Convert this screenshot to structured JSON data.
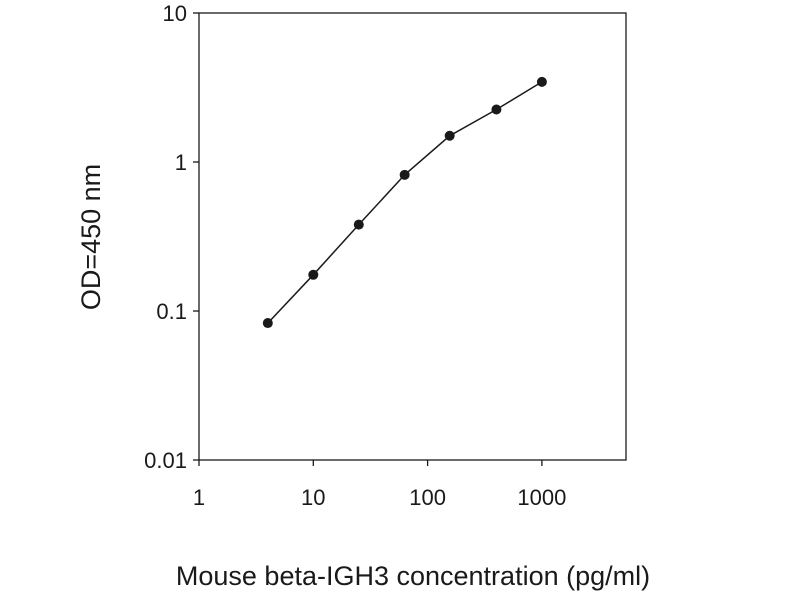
{
  "chart_data": {
    "type": "line",
    "title": "",
    "xlabel": "Mouse beta-IGH3 concentration (pg/ml)",
    "ylabel": "OD=450 nm",
    "x_scale": "log",
    "y_scale": "log",
    "xlim": [
      1,
      5000
    ],
    "ylim": [
      0.01,
      10
    ],
    "x_ticks": [
      1,
      10,
      100,
      1000
    ],
    "x_tick_labels": [
      "1",
      "10",
      "100",
      "1000"
    ],
    "y_ticks": [
      0.01,
      0.1,
      1,
      10
    ],
    "y_tick_labels": [
      "0.01",
      "0.1",
      "1",
      "10"
    ],
    "grid": false,
    "legend": "none",
    "series": [
      {
        "x": [
          4,
          10,
          25,
          63,
          156,
          400,
          1000
        ],
        "y": [
          0.083,
          0.175,
          0.38,
          0.82,
          1.5,
          2.25,
          3.45
        ],
        "color": "#1a1a1a",
        "marker": "circle"
      }
    ]
  }
}
